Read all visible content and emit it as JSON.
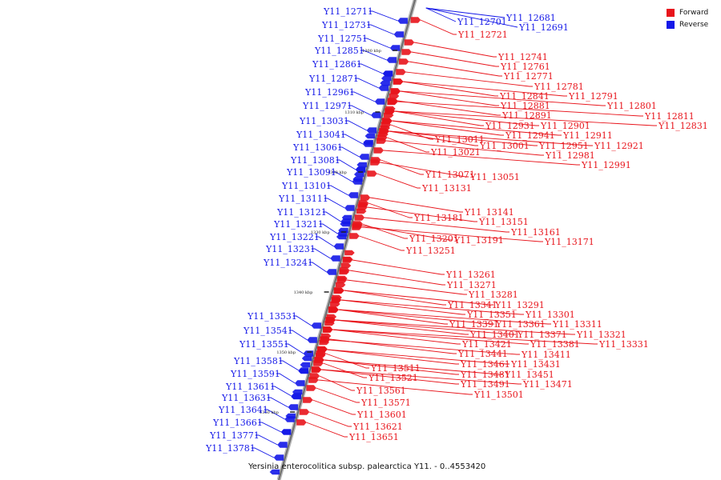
{
  "legend": {
    "forward_label": "Forward",
    "reverse_label": "Reverse",
    "forward_color": "#e8141b",
    "reverse_color": "#1418e8"
  },
  "caption": "Yersinia enterocolitica subsp. palearctica Y11. - 0..4553420",
  "kbp_marks": [
    "1300 kbp",
    "1310 kbp",
    "1320 kbp",
    "1330 kbp",
    "1340 kbp",
    "1350 kbp",
    "1360 kbp"
  ],
  "reverse_genes": [
    "Y11_12711",
    "Y11_12731",
    "Y11_12751",
    "Y11_12851",
    "Y11_12861",
    "Y11_12871",
    "Y11_12961",
    "Y11_12971",
    "Y11_13031",
    "Y11_13041",
    "Y11_13061",
    "Y11_13081",
    "Y11_13091",
    "Y11_13101",
    "Y11_13111",
    "Y11_13121",
    "Y11_13211",
    "Y11_13221",
    "Y11_13231",
    "Y11_13241",
    "Y11_13531",
    "Y11_13541",
    "Y11_13551",
    "Y11_13581",
    "Y11_13591",
    "Y11_13611",
    "Y11_13631",
    "Y11_13641",
    "Y11_13661",
    "Y11_13771",
    "Y11_13781"
  ],
  "reverse_top_genes": [
    "Y11_12701",
    "Y11_12681",
    "Y11_12691"
  ],
  "forward_genes": [
    "Y11_12721",
    "Y11_12741",
    "Y11_12761",
    "Y11_12771",
    "Y11_12781",
    "Y11_12791",
    "Y11_12801",
    "Y11_12811",
    "Y11_12831",
    "Y11_12841",
    "Y11_12881",
    "Y11_12891",
    "Y11_12901",
    "Y11_12911",
    "Y11_12921",
    "Y11_12931",
    "Y11_12941",
    "Y11_12951",
    "Y11_12981",
    "Y11_12991",
    "Y11_13001",
    "Y11_13011",
    "Y11_13021",
    "Y11_13051",
    "Y11_13071",
    "Y11_13131",
    "Y11_13141",
    "Y11_13151",
    "Y11_13161",
    "Y11_13171",
    "Y11_13181",
    "Y11_13191",
    "Y11_13201",
    "Y11_13251",
    "Y11_13261",
    "Y11_13271",
    "Y11_13281",
    "Y11_13291",
    "Y11_13301",
    "Y11_13311",
    "Y11_13321",
    "Y11_13331",
    "Y11_13341",
    "Y11_13351",
    "Y11_13361",
    "Y11_13371",
    "Y11_13381",
    "Y11_13391",
    "Y11_13401",
    "Y11_13411",
    "Y11_13421",
    "Y11_13431",
    "Y11_13441",
    "Y11_13451",
    "Y11_13461",
    "Y11_13471",
    "Y11_13481",
    "Y11_13491",
    "Y11_13501",
    "Y11_13511",
    "Y11_13521",
    "Y11_13561",
    "Y11_13571",
    "Y11_13601",
    "Y11_13621",
    "Y11_13651"
  ]
}
